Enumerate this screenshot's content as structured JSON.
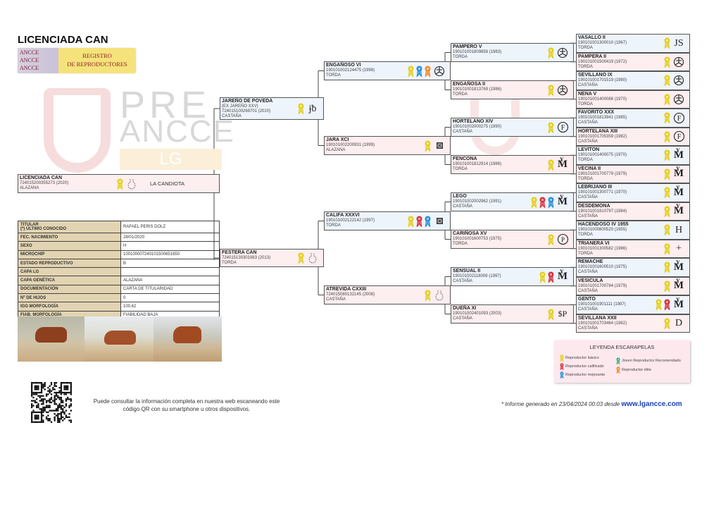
{
  "header": {
    "title": "LICENCIADA CAN",
    "logo_badge": [
      "ANCCE",
      "ANCCE",
      "ANCCE"
    ],
    "logo_text": [
      "REGISTRO",
      "DE REPRODUCTORES"
    ]
  },
  "watermark": {
    "line1": "PRE",
    "line2": "ANCCE",
    "line3": "LG"
  },
  "colors": {
    "male_bg": "#eef4fb",
    "female_bg": "#fdeef0",
    "rosette": {
      "basico": "#e3cf1c",
      "calificado": "#d8323e",
      "mejorante": "#2a8fd6",
      "joven": "#2bb37a",
      "elite": "#f08a24"
    }
  },
  "subject": {
    "name": "LICENCIADA CAN",
    "reg": "724015200355273 (2020)",
    "color": "ALAZANA",
    "rosettes": [
      "basico"
    ],
    "brand": "vase",
    "breeder": "LA CANDIOTA"
  },
  "info": [
    {
      "label": "TITULAR",
      "label2": "(*) ÚLTIMO CONOCIDO",
      "value": "RAFAEL PERIS DOLZ"
    },
    {
      "label": "FEC. NACIMIENTO",
      "value": "28/01/2020"
    },
    {
      "label": "SEXO",
      "value": "H"
    },
    {
      "label": "MICROCHIP",
      "value": "100100007240101500651650"
    },
    {
      "label": "ESTADO REPRODUCTIVO",
      "value": "B"
    },
    {
      "label": "CAPA LG",
      "value": ""
    },
    {
      "label": "CAPA GENÉTICA",
      "value": "ALAZANA"
    },
    {
      "label": "DOCUMENTACIÓN",
      "value": "CARTA DE TITULARIDAD"
    },
    {
      "label": "Nº DE HIJOS",
      "value": "0"
    },
    {
      "label": "IGG MORFOLOGÍA",
      "value": "100,62"
    },
    {
      "label": "FIAB. MORFOLOGÍA",
      "value": "FIABILIDAD BAJA"
    }
  ],
  "gen1": [
    {
      "name": "JAREÑO DE POVEDA",
      "alias": "(EX JAREÑO XXV)",
      "reg": "724015100268701 (2010)",
      "color": "CASTAÑA",
      "sex": "male",
      "rosettes": [
        "basico"
      ],
      "brand": "jb"
    },
    {
      "name": "FESTERA CAN",
      "reg": "724015130301983 (2013)",
      "color": "TORDA",
      "sex": "female",
      "rosettes": [
        "basico"
      ],
      "brand": "vase"
    }
  ],
  "gen2": [
    {
      "name": "ENGAÑOSO VI",
      "reg": "190101002124475 (1998)",
      "color": "TORDA",
      "sex": "male",
      "rosettes": [
        "basico",
        "mejorante",
        "elite"
      ],
      "brand": "circle-y"
    },
    {
      "name": "JARA XCI",
      "reg": "190101002200931 (1999)",
      "color": "ALAZANA",
      "sex": "female",
      "rosettes": [
        "basico"
      ],
      "brand": "box-x"
    },
    {
      "name": "CALIFA XXXVI",
      "reg": "190101002122142 (1997)",
      "color": "TORDA",
      "sex": "male",
      "rosettes": [
        "basico",
        "calificado",
        "mejorante"
      ],
      "brand": "box-x"
    },
    {
      "name": "ATREVIDA CXXIII",
      "reg": "724015080132145 (2008)",
      "color": "CASTAÑA",
      "sex": "female",
      "rosettes": [
        "basico"
      ],
      "brand": "vase"
    }
  ],
  "gen3": [
    {
      "name": "PAMPERO V",
      "reg": "190101001809858 (1983)",
      "color": "TORDA",
      "sex": "male",
      "rosettes": [
        "basico"
      ],
      "brand": "circle-y"
    },
    {
      "name": "ENGAÑOSA II",
      "reg": "190101001813769 (1986)",
      "color": "TORDA",
      "sex": "female",
      "rosettes": [
        "basico"
      ],
      "brand": "circle-y"
    },
    {
      "name": "HORTELANO XIV",
      "reg": "190101002000275 (1990)",
      "color": "CASTAÑA",
      "sex": "male",
      "rosettes": [
        "basico"
      ],
      "brand": "f-circle"
    },
    {
      "name": "FENCONA",
      "reg": "190101001812914 (1986)",
      "color": "TORDA",
      "sex": "female",
      "rosettes": [
        "basico"
      ],
      "brand": "ym"
    },
    {
      "name": "LEGO",
      "reg": "190101002002962 (1991)",
      "color": "CASTAÑA",
      "sex": "male",
      "rosettes": [
        "basico",
        "calificado",
        "mejorante"
      ],
      "brand": "ym"
    },
    {
      "name": "CARIÑOSA XV",
      "reg": "190101001600753 (1975)",
      "color": "TORDA",
      "sex": "female",
      "rosettes": [
        "basico"
      ],
      "brand": "pb-circle"
    },
    {
      "name": "SENSUAL II",
      "reg": "190101002118008 (1997)",
      "color": "CASTAÑA",
      "sex": "male",
      "rosettes": [
        "basico",
        "calificado"
      ],
      "brand": "ym"
    },
    {
      "name": "DUEÑA XI",
      "reg": "190101002401093 (2003)",
      "color": "CASTAÑA",
      "sex": "female",
      "rosettes": [
        "basico"
      ],
      "brand": "sp"
    }
  ],
  "gen4": [
    {
      "name": "VASALLO II",
      "reg": "190101001300010 (1967)",
      "color": "TORDA",
      "sex": "male",
      "rosettes": [
        "basico"
      ],
      "brand": "js"
    },
    {
      "name": "PAMPERA II",
      "reg": "190101001500419 (1972)",
      "color": "TORDA",
      "sex": "female",
      "rosettes": [
        "basico"
      ],
      "brand": "circle-y"
    },
    {
      "name": "SEVILLANO IX",
      "reg": "190101001701519 (1980)",
      "color": "CASTAÑA",
      "sex": "male",
      "rosettes": [
        "basico"
      ],
      "brand": "circle-y"
    },
    {
      "name": "NENA V",
      "reg": "190101001400086 (1970)",
      "color": "TORDA",
      "sex": "female",
      "rosettes": [
        "basico"
      ],
      "brand": "circle-y"
    },
    {
      "name": "FAVORITO XXX",
      "reg": "190101001813941 (1985)",
      "color": "CASTAÑA",
      "sex": "male",
      "rosettes": [
        "basico"
      ],
      "brand": "f-circle"
    },
    {
      "name": "HORTELANA XIII",
      "reg": "190101001705359 (1982)",
      "color": "CASTAÑA",
      "sex": "female",
      "rosettes": [
        "basico"
      ],
      "brand": "f-circle"
    },
    {
      "name": "LEVITON",
      "reg": "190101001400075 (1970)",
      "color": "TORDA",
      "sex": "male",
      "rosettes": [
        "basico"
      ],
      "brand": "ym"
    },
    {
      "name": "VECINA II",
      "reg": "190101001700779 (1979)",
      "color": "TORDA",
      "sex": "female",
      "rosettes": [
        "basico"
      ],
      "brand": "ym"
    },
    {
      "name": "LEBRIJANO III",
      "reg": "190101001300771 (1970)",
      "color": "CASTAÑA",
      "sex": "male",
      "rosettes": [
        "basico"
      ],
      "brand": "ym"
    },
    {
      "name": "DESDEMONA",
      "reg": "190101001810797 (1984)",
      "color": "CASTAÑA",
      "sex": "female",
      "rosettes": [
        "basico"
      ],
      "brand": "ym"
    },
    {
      "name": "HACENDOSO IV 1955",
      "reg": "190101000800520 (1955)",
      "color": "TORDA",
      "sex": "male",
      "rosettes": [
        "basico"
      ],
      "brand": "h-c"
    },
    {
      "name": "TRIANERA VI",
      "reg": "190101001300582 (1966)",
      "color": "TORDA",
      "sex": "female",
      "rosettes": [
        "basico"
      ],
      "brand": "plus"
    },
    {
      "name": "REMACHE",
      "reg": "190101001600510 (1975)",
      "color": "CASTAÑA",
      "sex": "male",
      "rosettes": [
        "basico"
      ],
      "brand": "ym"
    },
    {
      "name": "VESICULA",
      "reg": "190101001700784 (1979)",
      "color": "CASTAÑA",
      "sex": "female",
      "rosettes": [
        "basico"
      ],
      "brand": "ym"
    },
    {
      "name": "GENTO",
      "reg": "190101001901111 (1987)",
      "color": "CASTAÑA",
      "sex": "male",
      "rosettes": [
        "basico",
        "calificado"
      ],
      "brand": "ym"
    },
    {
      "name": "SEVILLANA XXII",
      "reg": "190101001703464 (1982)",
      "color": "CASTAÑA",
      "sex": "female",
      "rosettes": [
        "basico"
      ],
      "brand": "d"
    }
  ],
  "legend": {
    "title": "LEYENDA ESCARAPELAS",
    "items": [
      {
        "key": "basico",
        "label": "Reproductor básico"
      },
      {
        "key": "calificado",
        "label": "Reproductor calificado"
      },
      {
        "key": "mejorante",
        "label": "Reproductor mejorante"
      },
      {
        "key": "joven",
        "label": "Joven Reproductor Recomendado"
      },
      {
        "key": "elite",
        "label": "Reproductor élite"
      }
    ]
  },
  "footer": {
    "qr_text": "Puede consultar la información completa en nuestra web escaneando este código QR con su smartphone u otros dispositivos.",
    "generated": "* Informe generado en 23/04/2024 00:03 desde",
    "website": "www.lgancce.com"
  }
}
